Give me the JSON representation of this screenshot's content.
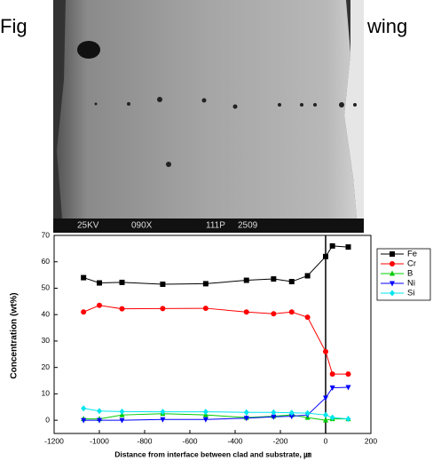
{
  "header_fragments": [
    "Fig",
    "wing"
  ],
  "image_labels": [
    "25KV",
    "090X",
    "111P",
    "2509"
  ],
  "chart_data": {
    "type": "line",
    "x_label": "Distance from interface between clad and substrate, ㎛",
    "y_label": "Concentration (wt%)",
    "x": [
      -1070,
      -1000,
      -900,
      -720,
      -530,
      -350,
      -230,
      -150,
      -80,
      0,
      30,
      100
    ],
    "series": [
      {
        "name": "Fe",
        "color": "#000000",
        "marker": "square",
        "values": [
          54,
          52,
          52.2,
          51.5,
          51.7,
          53,
          53.5,
          52.5,
          54.7,
          62,
          66,
          65.6
        ]
      },
      {
        "name": "Cr",
        "color": "#ff0000",
        "marker": "circle",
        "values": [
          41,
          43.5,
          42.2,
          42.3,
          42.4,
          41,
          40.3,
          41,
          39,
          26,
          17.5,
          17.5
        ]
      },
      {
        "name": "B",
        "color": "#00cc00",
        "marker": "triangle-up",
        "values": [
          0.5,
          0.5,
          2,
          2.5,
          2,
          1,
          1.5,
          2,
          1,
          0,
          0.5,
          0.5
        ]
      },
      {
        "name": "Ni",
        "color": "#0000ff",
        "marker": "triangle-down",
        "values": [
          0,
          0,
          0,
          0.3,
          0.3,
          0.8,
          1.3,
          1.5,
          2,
          8.5,
          12.3,
          12.5
        ]
      },
      {
        "name": "Si",
        "color": "#00e5ee",
        "marker": "diamond",
        "values": [
          4.5,
          3.5,
          3.3,
          3.2,
          3.2,
          3,
          3,
          2.8,
          2.7,
          2,
          1,
          0.5
        ]
      }
    ],
    "xlim": [
      -1200,
      200
    ],
    "xticks": [
      -1200,
      -1000,
      -800,
      -600,
      -400,
      -200,
      0,
      200
    ],
    "ylim": [
      -5,
      70
    ],
    "yticks": [
      0,
      10,
      20,
      30,
      40,
      50,
      60,
      70
    ],
    "reference_line_x": 0,
    "legend": "outside-right"
  }
}
